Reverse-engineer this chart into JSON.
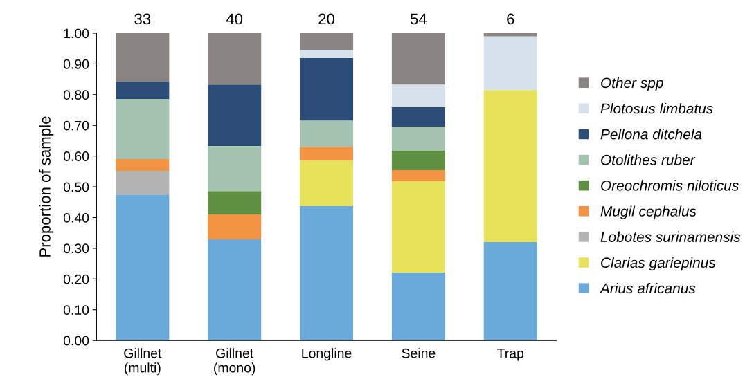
{
  "chart_data": {
    "type": "bar",
    "stacked": true,
    "ylabel": "Proportion of sample",
    "categories": [
      "Gillnet\n(multi)",
      "Gillnet\n(mono)",
      "Longline",
      "Seine",
      "Trap"
    ],
    "series": [
      {
        "name": "Arius africanus",
        "color": "#6aaadb",
        "values": [
          0.475,
          0.329,
          0.437,
          0.221,
          0.32
        ]
      },
      {
        "name": "Clarias gariepinus",
        "color": "#e6e25a",
        "values": [
          null,
          null,
          0.148,
          0.297,
          0.495
        ]
      },
      {
        "name": "Lobotes surinamensis",
        "color": "#b3b3b3",
        "values": [
          0.077,
          null,
          null,
          null,
          null
        ]
      },
      {
        "name": "Mugil cephalus",
        "color": "#f39443",
        "values": [
          0.038,
          0.081,
          0.045,
          0.036,
          null
        ]
      },
      {
        "name": "Oreochromis niloticus",
        "color": "#5f9042",
        "values": [
          null,
          0.076,
          null,
          0.063,
          null
        ]
      },
      {
        "name": "Otolithes ruber",
        "color": "#a3c2af",
        "values": [
          0.196,
          0.147,
          0.086,
          0.079,
          null
        ]
      },
      {
        "name": "Pellona ditchela",
        "color": "#2b4d78",
        "values": [
          0.056,
          0.2,
          0.203,
          0.063,
          null
        ]
      },
      {
        "name": "Plotosus limbatus",
        "color": "#d6e1ec",
        "values": [
          null,
          null,
          0.027,
          0.074,
          0.175
        ]
      },
      {
        "name": "Other spp",
        "color": "#898382",
        "values": [
          0.158,
          0.167,
          0.054,
          0.167,
          0.01
        ]
      }
    ],
    "annotations": [
      {
        "text": "33",
        "x": "Gillnet\n(multi)",
        "y": 1
      },
      {
        "text": "40",
        "x": "Gillnet\n(mono)",
        "y": 1
      },
      {
        "text": "20",
        "x": "Longline",
        "y": 1
      },
      {
        "text": "54",
        "x": "Seine",
        "y": 1
      },
      {
        "text": "6",
        "x": "Trap",
        "y": 1
      }
    ],
    "ylim": [
      0,
      1
    ],
    "yticks": [
      {
        "value": 0,
        "label": "0.00"
      },
      {
        "value": 0.1,
        "label": "0.10"
      },
      {
        "value": 0.2,
        "label": "0.20"
      },
      {
        "value": 0.3,
        "label": "0.30"
      },
      {
        "value": 0.4,
        "label": "0.40"
      },
      {
        "value": 0.5,
        "label": "0.50"
      },
      {
        "value": 0.6,
        "label": "0.60"
      },
      {
        "value": 0.7,
        "label": "0.70"
      },
      {
        "value": 0.8,
        "label": "0.80"
      },
      {
        "value": 0.9,
        "label": "0.90"
      },
      {
        "value": 1,
        "label": "1.00"
      }
    ],
    "grid": false,
    "legend": "right"
  }
}
